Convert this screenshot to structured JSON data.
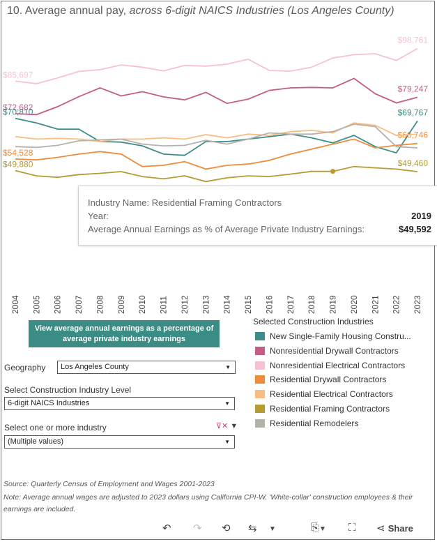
{
  "title": {
    "main": "10. Average annual pay, ",
    "italic": "across 6-digit NAICS Industries (Los Angeles County)"
  },
  "chart_data": {
    "type": "line",
    "title": "Average annual pay, across 6-digit NAICS Industries (Los Angeles County)",
    "x": [
      2004,
      2005,
      2006,
      2007,
      2008,
      2009,
      2010,
      2011,
      2012,
      2013,
      2014,
      2015,
      2016,
      2017,
      2018,
      2019,
      2020,
      2021,
      2022,
      2023
    ],
    "series": [
      {
        "name": "New Single-Family Housing Constru...",
        "color": "#3c8d8a",
        "values": [
          70810,
          69000,
          66500,
          66500,
          61500,
          61300,
          59800,
          56500,
          56000,
          61500,
          61500,
          62500,
          63500,
          64500,
          63000,
          61000,
          64000,
          59500,
          57000,
          69767
        ],
        "start_label": "$70,810",
        "end_label": "$69,767"
      },
      {
        "name": "Nonresidential Drywall Contractors",
        "color": "#c45c84",
        "values": [
          72682,
          72300,
          75500,
          79500,
          83000,
          79800,
          81500,
          79400,
          78200,
          81200,
          76800,
          78500,
          82000,
          83000,
          83200,
          83000,
          86800,
          80700,
          77000,
          79247
        ],
        "start_label": "$72,682",
        "end_label": "$79,247"
      },
      {
        "name": "Nonresidential Electrical Contractors",
        "color": "#f5c3cf",
        "values": [
          85697,
          84700,
          87000,
          89600,
          90300,
          92200,
          91300,
          89800,
          92000,
          91700,
          92500,
          94500,
          90000,
          89700,
          91300,
          95000,
          96300,
          96700,
          94000,
          98761
        ],
        "start_label": "$85,697",
        "end_label": "$98,761"
      },
      {
        "name": "Residential Drywall Contractors",
        "color": "#ed8c3a",
        "values": [
          54528,
          54200,
          55200,
          56500,
          57500,
          56500,
          51500,
          52000,
          53500,
          50500,
          52000,
          52500,
          54000,
          56500,
          58500,
          60500,
          62500,
          59000,
          60000,
          60746
        ],
        "start_label": "$54,528",
        "end_label": "$60,746"
      },
      {
        "name": "Residential Electrical Contractors",
        "color": "#f7be7f",
        "values": [
          63500,
          62500,
          62800,
          62500,
          61500,
          62500,
          62500,
          63000,
          62500,
          64300,
          63000,
          64500,
          64000,
          65500,
          66000,
          65000,
          69000,
          68000,
          64000,
          64500
        ],
        "start_label": "",
        "end_label": ""
      },
      {
        "name": "Residential Framing Contractors",
        "color": "#b49b32",
        "values": [
          49880,
          47800,
          47200,
          48300,
          48800,
          49500,
          47500,
          46600,
          47800,
          45500,
          47000,
          47800,
          47500,
          48500,
          49592,
          49592,
          51500,
          51000,
          50500,
          49460
        ],
        "start_label": "$49,880",
        "end_label": "$49,460"
      },
      {
        "name": "Residential Remodelers",
        "color": "#b5b1ad",
        "values": [
          59500,
          59200,
          60000,
          61800,
          62200,
          62500,
          60500,
          59800,
          60000,
          62000,
          60500,
          62500,
          65000,
          64500,
          64500,
          65500,
          68500,
          67500,
          59500,
          59000
        ],
        "start_label": "",
        "end_label": ""
      }
    ],
    "ylim": [
      40000,
      102000
    ],
    "highlight": {
      "series": "Residential Framing Contractors",
      "year": 2019,
      "value": 49592
    }
  },
  "tooltip": {
    "name_label": "Industry Name: Residential Framing Contractors",
    "year_label": "Year:",
    "year_value": "2019",
    "metric_label": "Average Annual Earnings as % of Average Private Industry Earnings:",
    "metric_value": "$49,592"
  },
  "button": {
    "label": "View average annual earnings as a percentage of average private industry earnings"
  },
  "filters": {
    "geography_label": "Geography",
    "geography_value": "Los Angeles County",
    "level_label": "Select Construction Industry Level",
    "level_value": "6-digit NAICS Industries",
    "industry_label": "Select one or more industry",
    "industry_value": "(Multiple values)"
  },
  "legend": {
    "title": "Selected Construction Industries"
  },
  "notes": {
    "source": "Source: Quarterly Census of Employment and Wages 2001-2023",
    "note": "Note: Average annual wages are adjusted to 2023 dollars using California CPI-W. 'White-collar' construction employees & their earnings are included."
  },
  "toolbar": {
    "undo": "↶",
    "redo": "↷",
    "revert": "⟲",
    "refresh": "⇆",
    "share_label": "Share"
  }
}
